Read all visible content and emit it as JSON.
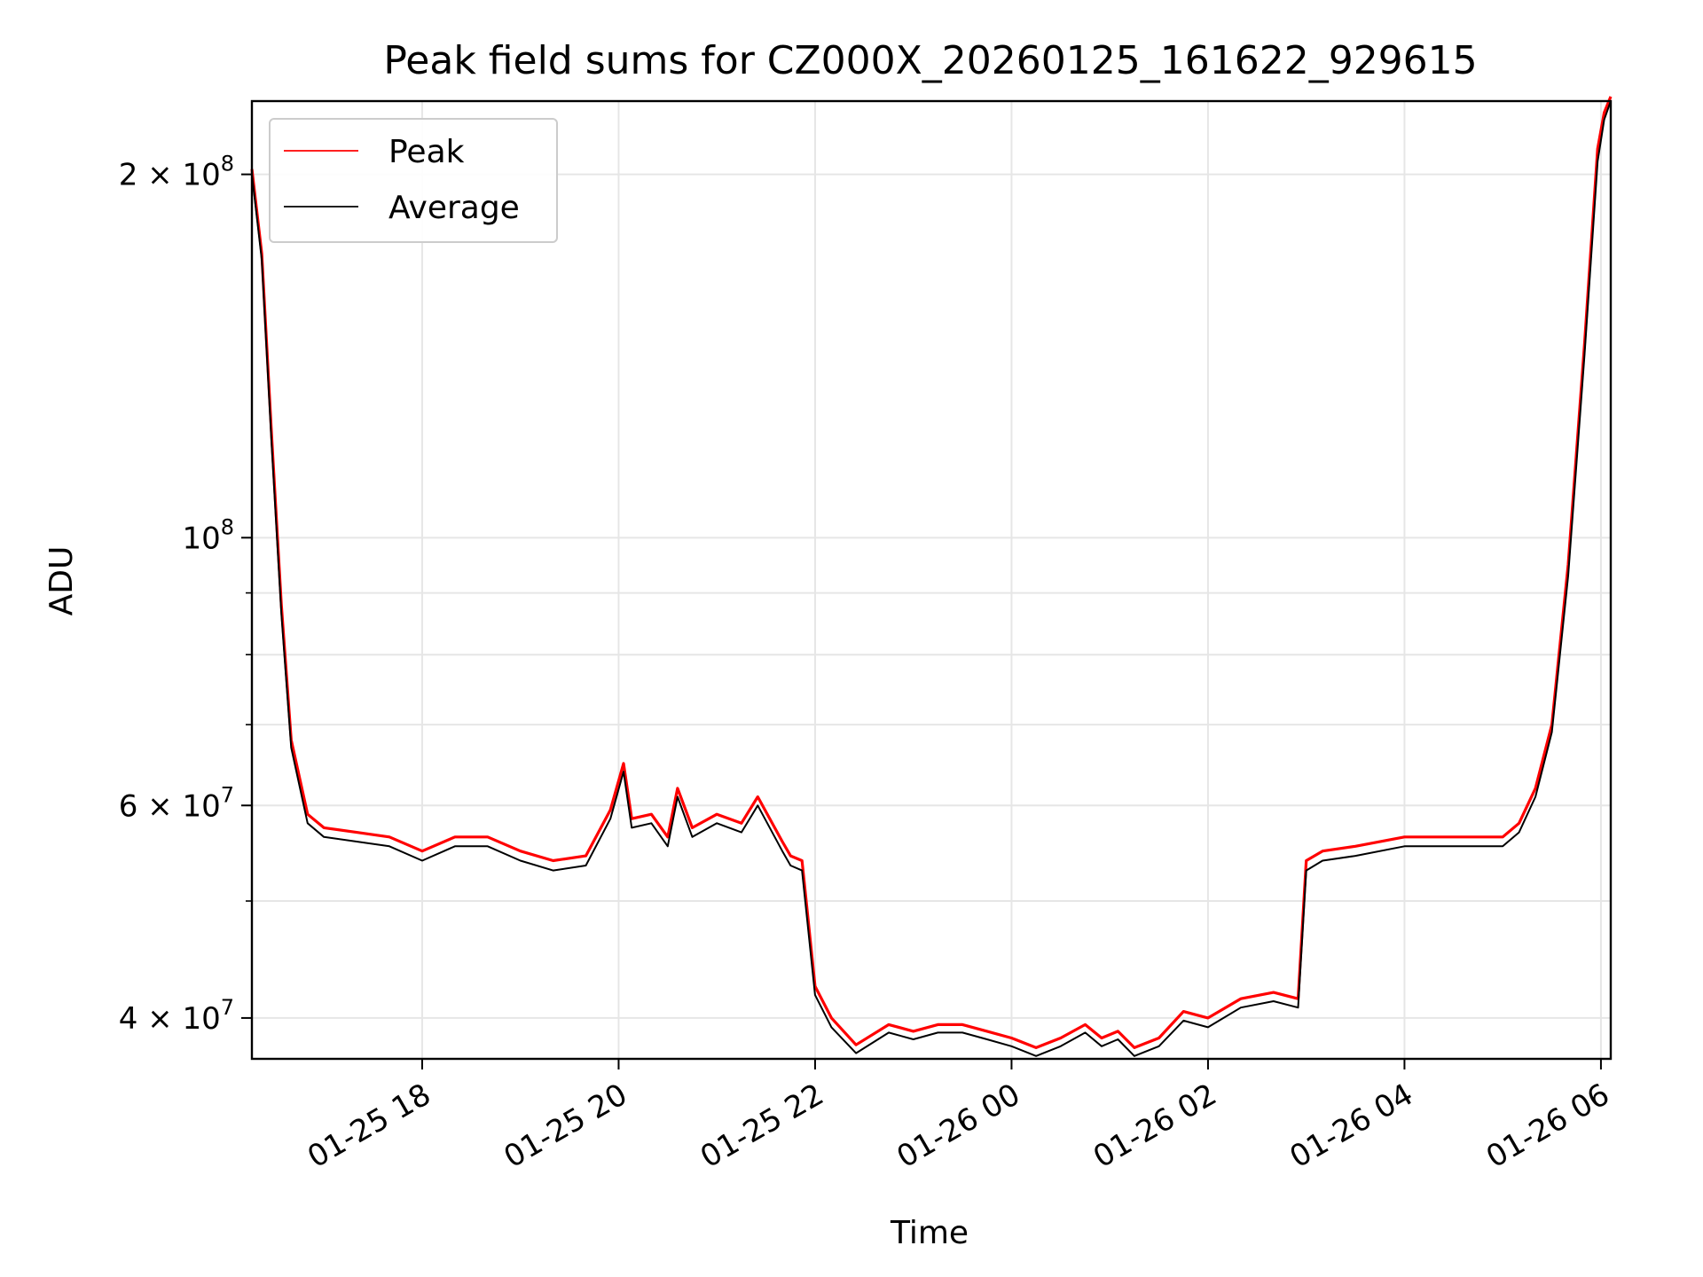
{
  "chart_data": {
    "type": "line",
    "title": "Peak field sums for CZ000X_20260125_161622_929615",
    "xlabel": "Time",
    "ylabel": "ADU",
    "y_scale": "log",
    "ylim": [
      37000000,
      230000000
    ],
    "xlim": [
      "2026-01-25 16:16",
      "2026-01-26 06:06"
    ],
    "grid": true,
    "legend_position": "upper-left",
    "x_ticks": [
      {
        "t": "2026-01-25 18:00",
        "label": "01-25 18"
      },
      {
        "t": "2026-01-25 20:00",
        "label": "01-25 20"
      },
      {
        "t": "2026-01-25 22:00",
        "label": "01-25 22"
      },
      {
        "t": "2026-01-26 00:00",
        "label": "01-26 00"
      },
      {
        "t": "2026-01-26 02:00",
        "label": "01-26 02"
      },
      {
        "t": "2026-01-26 04:00",
        "label": "01-26 04"
      },
      {
        "t": "2026-01-26 06:00",
        "label": "01-26 06"
      }
    ],
    "y_ticks": [
      {
        "value": 40000000,
        "base": "4 × 10",
        "exp": "7"
      },
      {
        "value": 60000000,
        "base": "6 × 10",
        "exp": "7"
      },
      {
        "value": 100000000,
        "base": "10",
        "exp": "8"
      },
      {
        "value": 200000000,
        "base": "2 × 10",
        "exp": "8"
      }
    ],
    "y_minor_ticks": [
      50000000,
      70000000,
      80000000,
      90000000
    ],
    "series": [
      {
        "name": "Peak",
        "color": "#ff0000",
        "x": [
          "2026-01-25 16:16",
          "2026-01-25 16:22",
          "2026-01-25 16:28",
          "2026-01-25 16:34",
          "2026-01-25 16:40",
          "2026-01-25 16:50",
          "2026-01-25 17:00",
          "2026-01-25 17:20",
          "2026-01-25 17:40",
          "2026-01-25 18:00",
          "2026-01-25 18:20",
          "2026-01-25 18:40",
          "2026-01-25 19:00",
          "2026-01-25 19:20",
          "2026-01-25 19:40",
          "2026-01-25 19:55",
          "2026-01-25 20:03",
          "2026-01-25 20:08",
          "2026-01-25 20:20",
          "2026-01-25 20:30",
          "2026-01-25 20:36",
          "2026-01-25 20:45",
          "2026-01-25 21:00",
          "2026-01-25 21:15",
          "2026-01-25 21:25",
          "2026-01-25 21:40",
          "2026-01-25 21:45",
          "2026-01-25 21:52",
          "2026-01-25 22:00",
          "2026-01-25 22:10",
          "2026-01-25 22:25",
          "2026-01-25 22:45",
          "2026-01-25 23:00",
          "2026-01-25 23:15",
          "2026-01-25 23:30",
          "2026-01-25 23:45",
          "2026-01-26 00:00",
          "2026-01-26 00:15",
          "2026-01-26 00:30",
          "2026-01-26 00:45",
          "2026-01-26 00:55",
          "2026-01-26 01:05",
          "2026-01-26 01:15",
          "2026-01-26 01:30",
          "2026-01-26 01:45",
          "2026-01-26 02:00",
          "2026-01-26 02:20",
          "2026-01-26 02:40",
          "2026-01-26 02:55",
          "2026-01-26 03:00",
          "2026-01-26 03:10",
          "2026-01-26 03:30",
          "2026-01-26 04:00",
          "2026-01-26 04:30",
          "2026-01-26 05:00",
          "2026-01-26 05:10",
          "2026-01-26 05:20",
          "2026-01-26 05:30",
          "2026-01-26 05:40",
          "2026-01-26 05:50",
          "2026-01-26 05:58",
          "2026-01-26 06:02",
          "2026-01-26 06:06"
        ],
        "y": [
          202000000,
          172000000,
          122000000,
          88000000,
          68000000,
          59000000,
          57500000,
          57000000,
          56500000,
          55000000,
          56500000,
          56500000,
          55000000,
          54000000,
          54500000,
          59500000,
          65000000,
          58500000,
          59000000,
          56500000,
          62000000,
          57500000,
          59000000,
          58000000,
          61000000,
          56000000,
          54500000,
          54000000,
          42500000,
          40000000,
          38000000,
          39500000,
          39000000,
          39500000,
          39500000,
          39000000,
          38500000,
          37800000,
          38500000,
          39500000,
          38500000,
          39000000,
          37800000,
          38500000,
          40500000,
          40000000,
          41500000,
          42000000,
          41500000,
          54000000,
          55000000,
          55500000,
          56500000,
          56500000,
          56500000,
          58000000,
          62000000,
          70000000,
          95000000,
          145000000,
          210000000,
          225000000,
          232000000
        ]
      },
      {
        "name": "Average",
        "color": "#000000",
        "x": [
          "2026-01-25 16:16",
          "2026-01-25 16:22",
          "2026-01-25 16:28",
          "2026-01-25 16:34",
          "2026-01-25 16:40",
          "2026-01-25 16:50",
          "2026-01-25 17:00",
          "2026-01-25 17:20",
          "2026-01-25 17:40",
          "2026-01-25 18:00",
          "2026-01-25 18:20",
          "2026-01-25 18:40",
          "2026-01-25 19:00",
          "2026-01-25 19:20",
          "2026-01-25 19:40",
          "2026-01-25 19:55",
          "2026-01-25 20:03",
          "2026-01-25 20:08",
          "2026-01-25 20:20",
          "2026-01-25 20:30",
          "2026-01-25 20:36",
          "2026-01-25 20:45",
          "2026-01-25 21:00",
          "2026-01-25 21:15",
          "2026-01-25 21:25",
          "2026-01-25 21:40",
          "2026-01-25 21:45",
          "2026-01-25 21:52",
          "2026-01-25 22:00",
          "2026-01-25 22:10",
          "2026-01-25 22:25",
          "2026-01-25 22:45",
          "2026-01-25 23:00",
          "2026-01-25 23:15",
          "2026-01-25 23:30",
          "2026-01-25 23:45",
          "2026-01-26 00:00",
          "2026-01-26 00:15",
          "2026-01-26 00:30",
          "2026-01-26 00:45",
          "2026-01-26 00:55",
          "2026-01-26 01:05",
          "2026-01-26 01:15",
          "2026-01-26 01:30",
          "2026-01-26 01:45",
          "2026-01-26 02:00",
          "2026-01-26 02:20",
          "2026-01-26 02:40",
          "2026-01-26 02:55",
          "2026-01-26 03:00",
          "2026-01-26 03:10",
          "2026-01-26 03:30",
          "2026-01-26 04:00",
          "2026-01-26 04:30",
          "2026-01-26 05:00",
          "2026-01-26 05:10",
          "2026-01-26 05:20",
          "2026-01-26 05:30",
          "2026-01-26 05:40",
          "2026-01-26 05:50",
          "2026-01-26 05:58",
          "2026-01-26 06:02",
          "2026-01-26 06:06"
        ],
        "y": [
          200000000,
          170000000,
          120000000,
          86500000,
          67000000,
          58000000,
          56500000,
          56000000,
          55500000,
          54000000,
          55500000,
          55500000,
          54000000,
          53000000,
          53500000,
          58500000,
          64000000,
          57500000,
          58000000,
          55500000,
          61000000,
          56500000,
          58000000,
          57000000,
          60000000,
          55000000,
          53500000,
          53000000,
          41800000,
          39300000,
          37400000,
          38900000,
          38400000,
          38900000,
          38900000,
          38400000,
          37900000,
          37200000,
          37900000,
          38900000,
          37900000,
          38400000,
          37200000,
          37900000,
          39800000,
          39300000,
          40800000,
          41300000,
          40800000,
          53000000,
          54000000,
          54500000,
          55500000,
          55500000,
          55500000,
          57000000,
          61000000,
          69000000,
          93000000,
          142000000,
          205000000,
          222000000,
          230000000
        ]
      }
    ]
  }
}
